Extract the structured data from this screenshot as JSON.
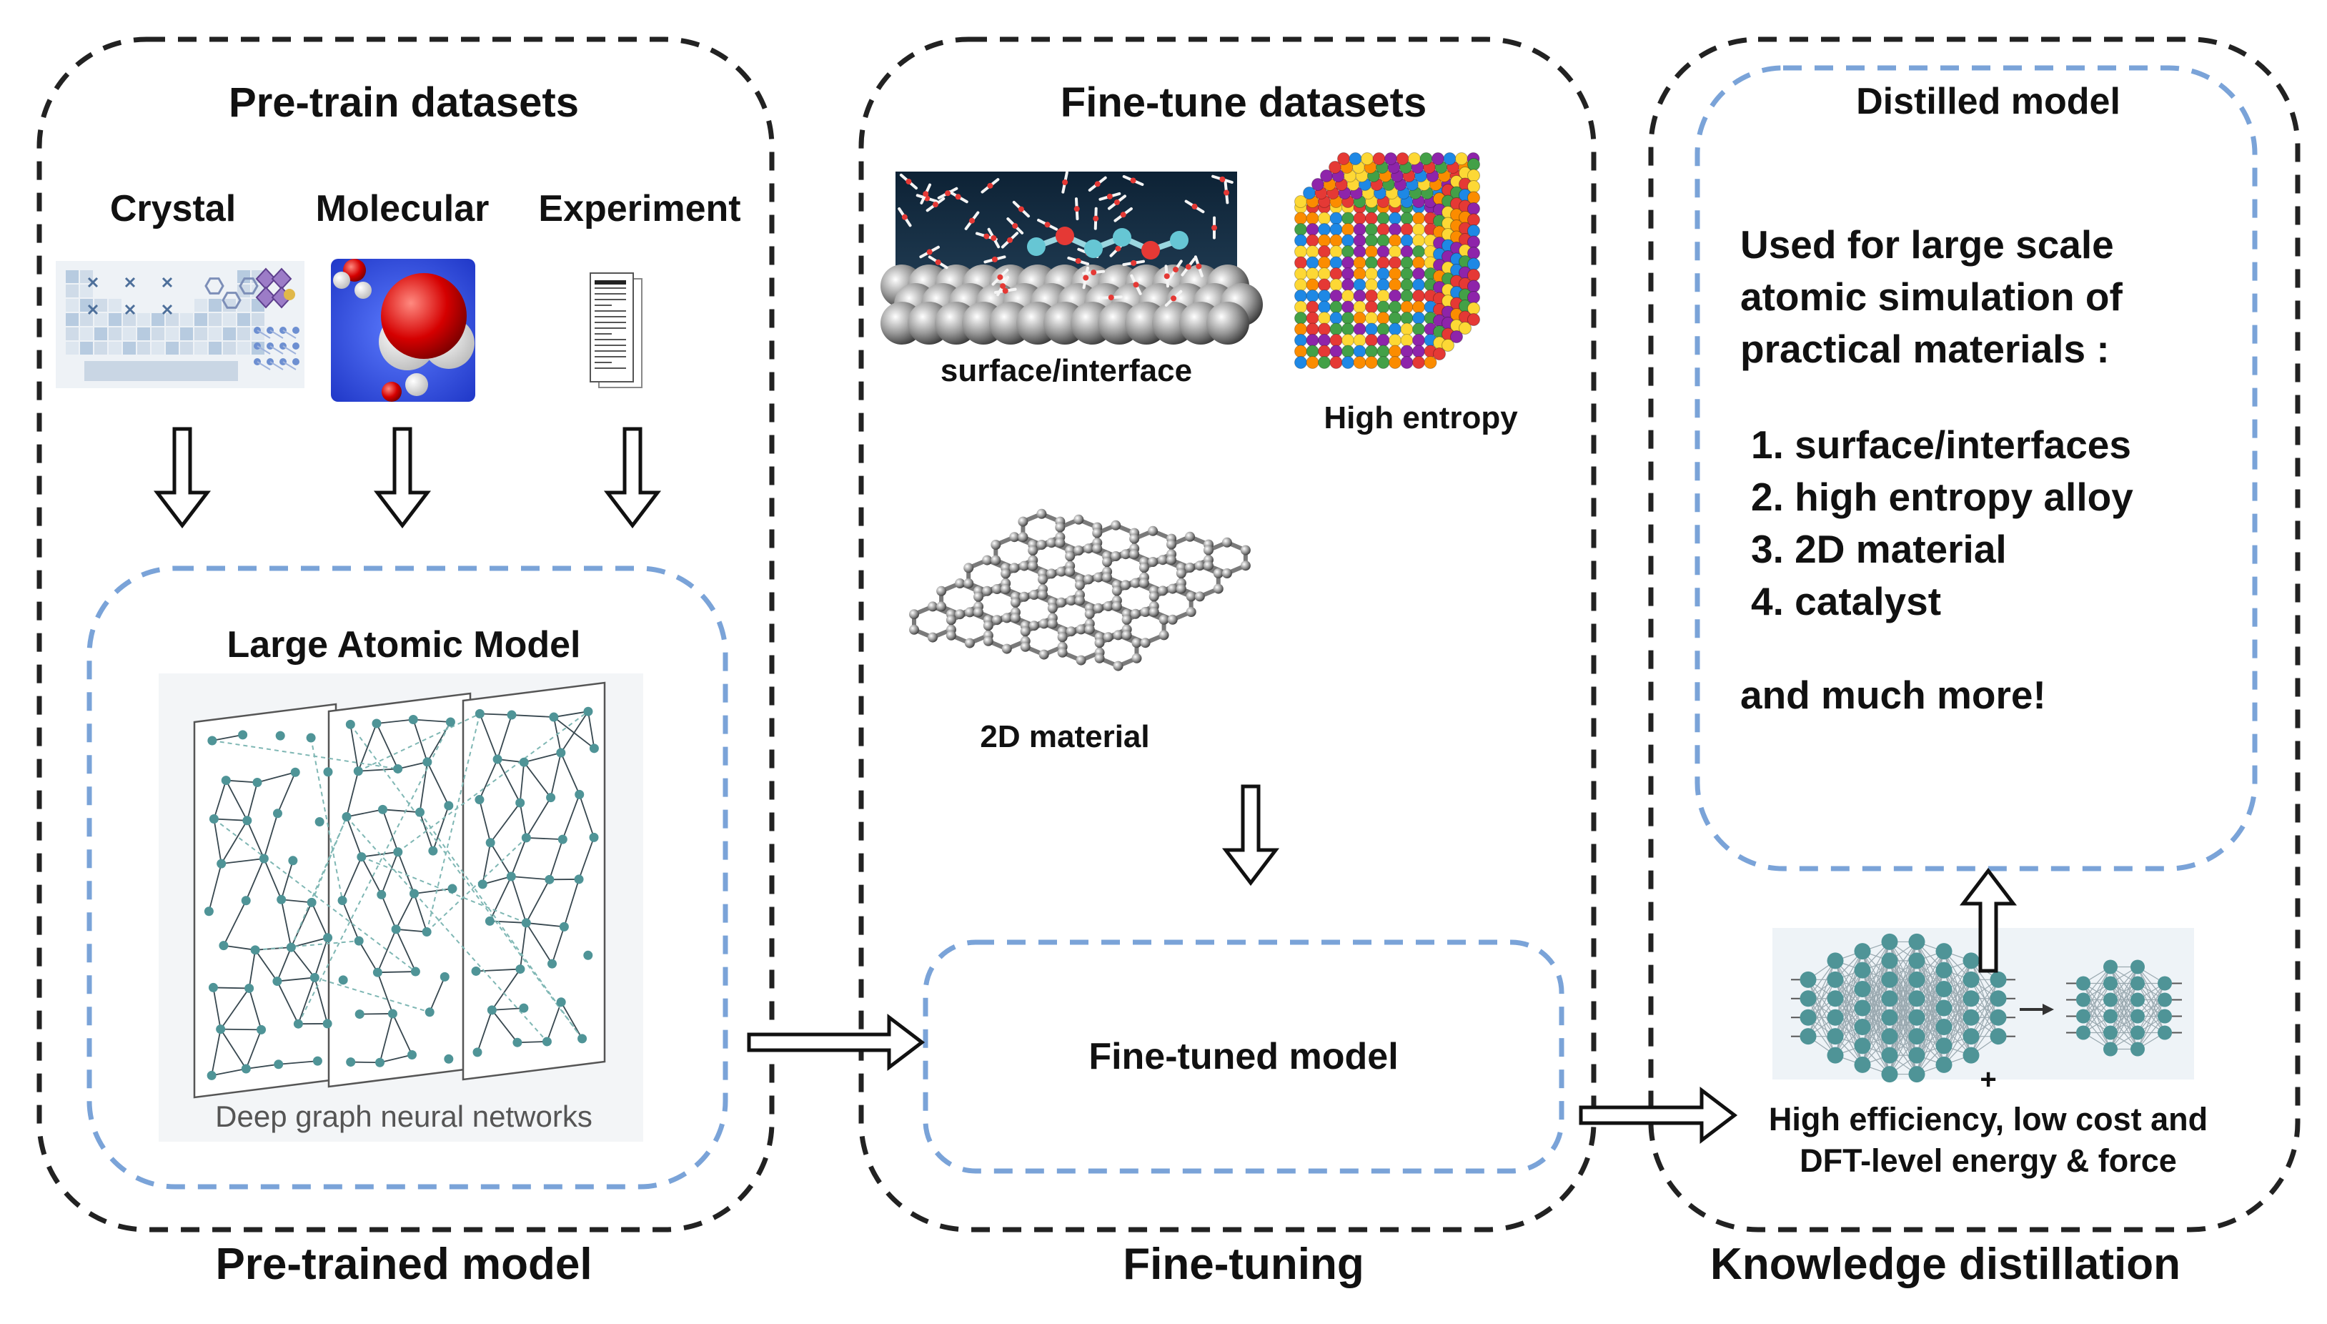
{
  "pretrain": {
    "title": "Pre-train datasets",
    "sources": [
      "Crystal",
      "Molecular",
      "Experiment"
    ],
    "model_title": "Large Atomic Model",
    "network_caption": "Deep graph neural networks",
    "stage_label": "Pre-trained model"
  },
  "finetune": {
    "title": "Fine-tune datasets",
    "datasets": [
      "surface/interface",
      "High entropy",
      "2D material"
    ],
    "model_title": "Fine-tuned model",
    "stage_label": "Fine-tuning"
  },
  "distill": {
    "title": "Distilled model",
    "intro": [
      "Used for large scale",
      "atomic simulation of",
      "practical materials :"
    ],
    "items": [
      "1. surface/interfaces",
      "2. high entropy alloy",
      "3. 2D material",
      "4. catalyst"
    ],
    "more": "and much more!",
    "plus": "+",
    "benefit": [
      "High efficiency, low cost and",
      "DFT-level energy & force"
    ],
    "stage_label": "Knowledge distillation"
  },
  "colors": {
    "outer_dash": "#222222",
    "inner_dash": "#7aa3d8",
    "net_node": "#4f9497",
    "net_edge": "#37474f",
    "ball_palette": [
      "#e53935",
      "#43a047",
      "#1e88e5",
      "#fb8c00",
      "#fdd835",
      "#8e24aa"
    ]
  }
}
